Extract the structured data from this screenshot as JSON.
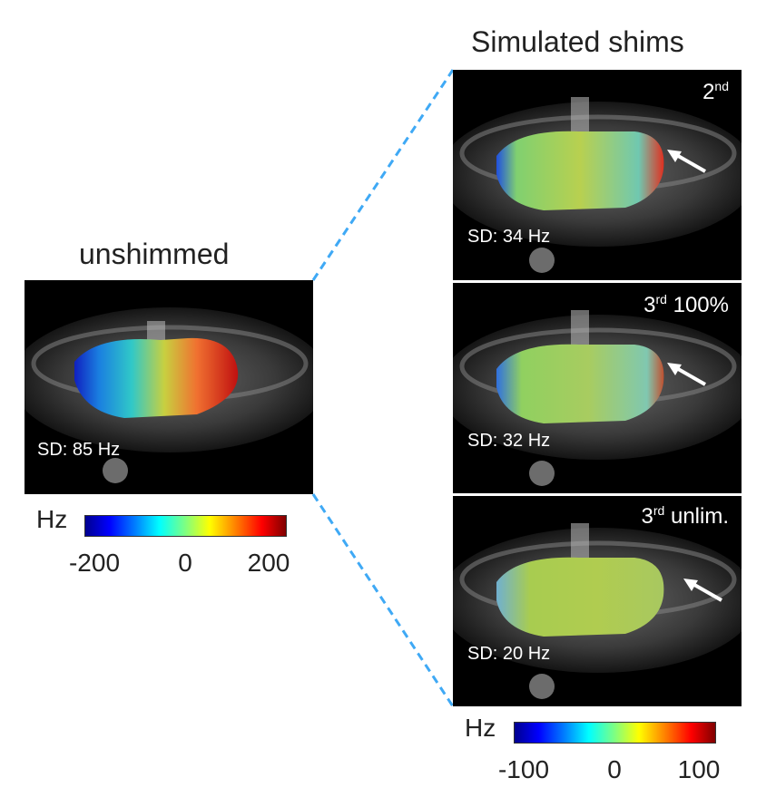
{
  "left": {
    "title": "unshimmed",
    "sd": "SD: 85 Hz",
    "colorbar": {
      "unit": "Hz",
      "ticks": [
        "-200",
        "0",
        "200"
      ]
    }
  },
  "right": {
    "title": "Simulated shims",
    "panels": [
      {
        "ord": "2",
        "sup": "nd",
        "rest": "",
        "sd": "SD: 34 Hz"
      },
      {
        "ord": "3",
        "sup": "rd",
        "rest": " 100%",
        "sd": "SD: 32 Hz"
      },
      {
        "ord": "3",
        "sup": "rd",
        "rest": " unlim.",
        "sd": "SD: 20 Hz"
      }
    ],
    "colorbar": {
      "unit": "Hz",
      "ticks": [
        "-100",
        "0",
        "100"
      ]
    }
  }
}
